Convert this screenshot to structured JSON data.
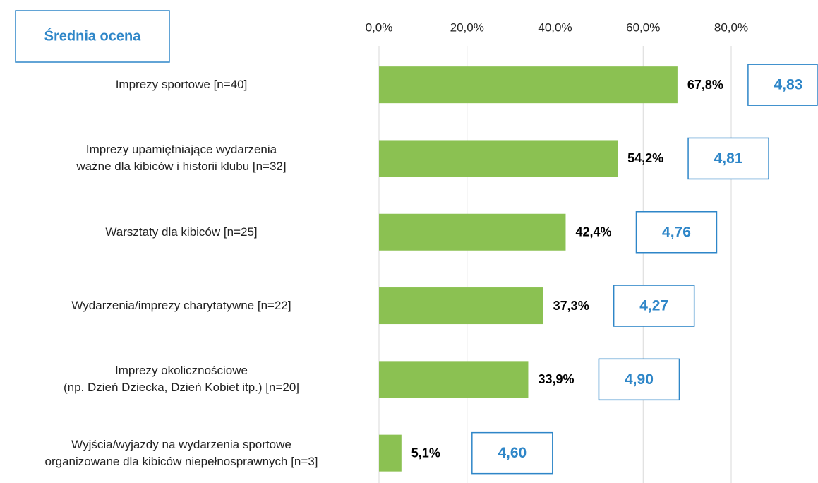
{
  "chart_data": {
    "type": "barh",
    "categories": [
      "Imprezy sportowe [n=40]",
      "Imprezy upamiętniające wydarzenia\nważne dla kibiców i historii klubu [n=32]",
      "Warsztaty dla kibiców [n=25]",
      "Wydarzenia/imprezy charytatywne [n=22]",
      "Imprezy okolicznościowe\n(np. Dzień Dziecka, Dzień Kobiet itp.) [n=20]",
      "Wyjścia/wyjazdy na wydarzenia sportowe\norganizowane dla kibiców niepełnosprawnych [n=3]"
    ],
    "values": [
      67.8,
      54.2,
      42.4,
      37.3,
      33.9,
      5.1
    ],
    "value_labels": [
      "67,8%",
      "54,2%",
      "42,4%",
      "37,3%",
      "33,9%",
      "5,1%"
    ],
    "color": "#8bc152",
    "xlim": [
      0,
      80
    ],
    "xticks": [
      {
        "value": 0,
        "label": "0,0%"
      },
      {
        "value": 20,
        "label": "20,0%"
      },
      {
        "value": 40,
        "label": "40,0%"
      },
      {
        "value": 60,
        "label": "60,0%"
      },
      {
        "value": 80,
        "label": "80,0%"
      }
    ],
    "grid": true,
    "scores": {
      "title": "Średnia ocena",
      "color": "#2e86c8",
      "values": [
        4.83,
        4.81,
        4.76,
        4.27,
        4.9,
        4.6
      ],
      "value_labels": [
        "4,83",
        "4,81",
        "4,76",
        "4,27",
        "4,90",
        "4,60"
      ]
    }
  }
}
